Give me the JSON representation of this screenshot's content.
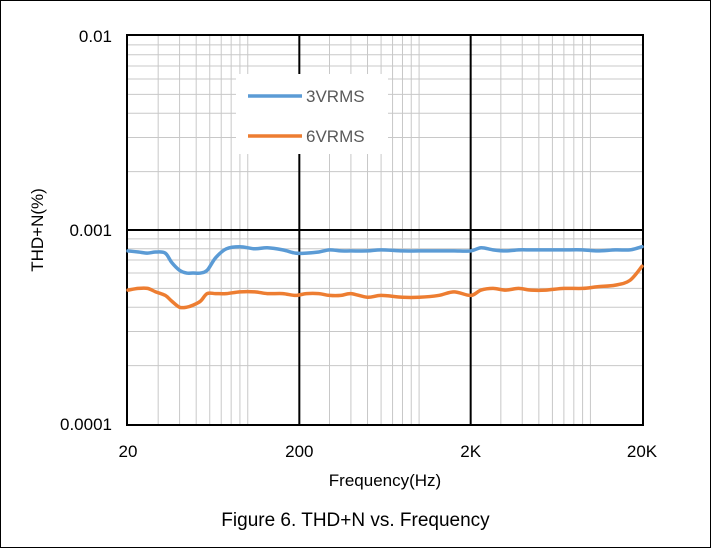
{
  "caption": "Figure 6. THD+N vs. Frequency",
  "chart_data": {
    "type": "line",
    "xlabel": "Frequency(Hz)",
    "ylabel": "THD+N(%)",
    "x_scale": "log",
    "y_scale": "log",
    "xlim": [
      20,
      20000
    ],
    "ylim": [
      0.0001,
      0.01
    ],
    "x_ticks": [
      20,
      200,
      2000,
      20000
    ],
    "x_tick_labels": [
      "20",
      "200",
      "2K",
      "20K"
    ],
    "y_ticks": [
      0.0001,
      0.001,
      0.01
    ],
    "y_tick_labels": [
      "0.0001",
      "0.001",
      "0.01"
    ],
    "grid": true,
    "legend_position": "upper-left inside plot",
    "series": [
      {
        "name": "3VRMS",
        "color": "#5B9BD5",
        "x": [
          20,
          23,
          26,
          29,
          33,
          36,
          40,
          44,
          48,
          53,
          58,
          65,
          75,
          90,
          110,
          130,
          160,
          190,
          220,
          260,
          300,
          350,
          400,
          500,
          600,
          800,
          1000,
          1300,
          1600,
          2000,
          2300,
          2700,
          3200,
          3800,
          4500,
          5500,
          7000,
          9000,
          11000,
          14000,
          17000,
          20000
        ],
        "values": [
          0.00078,
          0.00077,
          0.00076,
          0.00077,
          0.00076,
          0.00068,
          0.00062,
          0.0006,
          0.0006,
          0.0006,
          0.00062,
          0.00072,
          0.0008,
          0.00082,
          0.0008,
          0.00081,
          0.00079,
          0.00076,
          0.00076,
          0.00077,
          0.00079,
          0.00078,
          0.00078,
          0.00078,
          0.00079,
          0.00078,
          0.00078,
          0.00078,
          0.00078,
          0.00078,
          0.00081,
          0.00079,
          0.00078,
          0.00079,
          0.00079,
          0.00079,
          0.00079,
          0.00079,
          0.00078,
          0.00079,
          0.00079,
          0.00082
        ]
      },
      {
        "name": "6VRMS",
        "color": "#ED7D31",
        "x": [
          20,
          23,
          26,
          29,
          33,
          36,
          40,
          44,
          48,
          53,
          58,
          65,
          75,
          90,
          110,
          130,
          160,
          190,
          220,
          260,
          300,
          350,
          400,
          500,
          600,
          800,
          1000,
          1300,
          1600,
          2000,
          2300,
          2700,
          3200,
          3800,
          4500,
          5500,
          7000,
          9000,
          11000,
          14000,
          17000,
          20000
        ],
        "values": [
          0.00049,
          0.0005,
          0.0005,
          0.00048,
          0.00046,
          0.00043,
          0.0004,
          0.0004,
          0.00041,
          0.00043,
          0.00047,
          0.00047,
          0.00047,
          0.00048,
          0.00048,
          0.00047,
          0.00047,
          0.00046,
          0.00047,
          0.00047,
          0.00046,
          0.00046,
          0.00047,
          0.00045,
          0.00046,
          0.00045,
          0.00045,
          0.00046,
          0.00048,
          0.00046,
          0.00049,
          0.0005,
          0.00049,
          0.0005,
          0.00049,
          0.00049,
          0.0005,
          0.0005,
          0.00051,
          0.00052,
          0.00055,
          0.00065
        ]
      }
    ]
  }
}
